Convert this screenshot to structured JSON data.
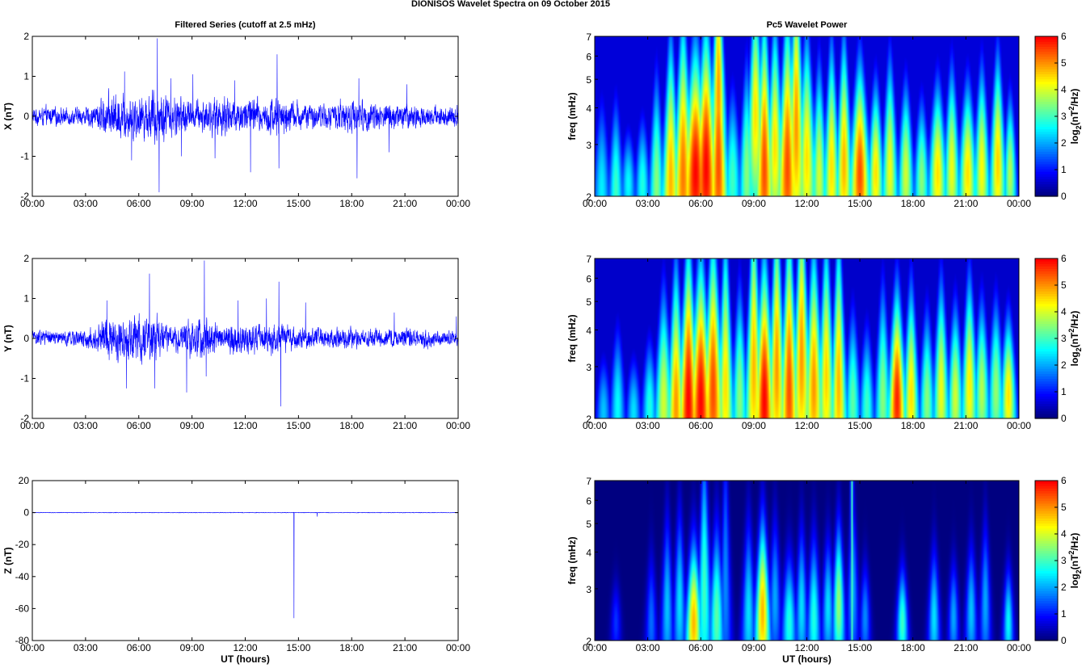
{
  "figure_title": "DIONISOS Wavelet Spectra on 09 October   2015",
  "chart_data": [
    {
      "id": "x-series",
      "type": "line",
      "title": "Filtered Series (cutoff at 2.5 mHz)",
      "ylabel": "X (nT)",
      "xlabel": "",
      "ylim": [
        -2,
        2
      ],
      "yticks": [
        "-2",
        "-1",
        "0",
        "1",
        "2"
      ],
      "xlim_hours": [
        0,
        24
      ],
      "xticks": [
        "00:00",
        "03:00",
        "06:00",
        "09:00",
        "12:00",
        "15:00",
        "18:00",
        "21:00",
        "00:00"
      ],
      "color": "#0000ff",
      "envelope": [
        [
          0.0,
          0.35
        ],
        [
          1.0,
          0.4
        ],
        [
          2.0,
          0.35
        ],
        [
          3.0,
          0.4
        ],
        [
          3.5,
          0.55
        ],
        [
          4.0,
          0.8
        ],
        [
          4.5,
          1.0
        ],
        [
          5.0,
          0.95
        ],
        [
          5.5,
          0.9
        ],
        [
          6.0,
          1.0
        ],
        [
          6.5,
          0.9
        ],
        [
          7.0,
          1.4
        ],
        [
          7.3,
          1.1
        ],
        [
          7.8,
          0.8
        ],
        [
          8.5,
          0.9
        ],
        [
          9.0,
          0.6
        ],
        [
          9.5,
          0.75
        ],
        [
          10.0,
          0.75
        ],
        [
          10.5,
          0.8
        ],
        [
          11.0,
          0.95
        ],
        [
          11.5,
          0.7
        ],
        [
          12.0,
          0.7
        ],
        [
          12.5,
          0.9
        ],
        [
          13.0,
          0.6
        ],
        [
          13.5,
          0.85
        ],
        [
          14.0,
          0.9
        ],
        [
          14.5,
          0.65
        ],
        [
          15.0,
          0.6
        ],
        [
          15.5,
          0.5
        ],
        [
          16.0,
          0.5
        ],
        [
          16.5,
          0.55
        ],
        [
          17.0,
          0.5
        ],
        [
          17.5,
          0.75
        ],
        [
          18.0,
          0.75
        ],
        [
          18.5,
          0.6
        ],
        [
          19.0,
          0.7
        ],
        [
          19.5,
          0.6
        ],
        [
          20.0,
          0.6
        ],
        [
          20.5,
          0.6
        ],
        [
          21.0,
          0.55
        ],
        [
          21.5,
          0.5
        ],
        [
          22.0,
          0.5
        ],
        [
          22.5,
          0.45
        ],
        [
          23.0,
          0.5
        ],
        [
          24.0,
          0.45
        ]
      ],
      "spikes": [
        [
          5.2,
          1.12
        ],
        [
          5.6,
          -1.1
        ],
        [
          7.05,
          1.95
        ],
        [
          7.15,
          -1.9
        ],
        [
          7.8,
          0.95
        ],
        [
          8.4,
          -1.0
        ],
        [
          9.05,
          1.05
        ],
        [
          10.3,
          -1.05
        ],
        [
          11.4,
          0.9
        ],
        [
          12.3,
          -1.4
        ],
        [
          13.8,
          1.55
        ],
        [
          13.9,
          -1.3
        ],
        [
          18.3,
          -1.55
        ],
        [
          18.4,
          0.95
        ],
        [
          20.1,
          -0.9
        ],
        [
          21.1,
          0.8
        ]
      ]
    },
    {
      "id": "y-series",
      "type": "line",
      "title": "",
      "ylabel": "Y (nT)",
      "xlabel": "",
      "ylim": [
        -2,
        2
      ],
      "yticks": [
        "-2",
        "-1",
        "0",
        "1",
        "2"
      ],
      "xlim_hours": [
        0,
        24
      ],
      "xticks": [
        "00:00",
        "03:00",
        "06:00",
        "09:00",
        "12:00",
        "15:00",
        "18:00",
        "21:00",
        "00:00"
      ],
      "color": "#0000ff",
      "envelope": [
        [
          0.0,
          0.35
        ],
        [
          1.0,
          0.35
        ],
        [
          2.0,
          0.3
        ],
        [
          3.0,
          0.4
        ],
        [
          3.5,
          0.6
        ],
        [
          4.0,
          0.8
        ],
        [
          4.5,
          1.0
        ],
        [
          5.0,
          0.95
        ],
        [
          5.5,
          0.85
        ],
        [
          6.0,
          1.0
        ],
        [
          6.5,
          1.05
        ],
        [
          7.0,
          0.95
        ],
        [
          7.5,
          0.6
        ],
        [
          8.0,
          0.55
        ],
        [
          8.5,
          0.65
        ],
        [
          9.0,
          0.75
        ],
        [
          9.5,
          0.95
        ],
        [
          10.0,
          0.75
        ],
        [
          10.5,
          0.55
        ],
        [
          11.0,
          0.6
        ],
        [
          11.5,
          0.7
        ],
        [
          12.0,
          0.65
        ],
        [
          12.5,
          0.65
        ],
        [
          13.0,
          0.6
        ],
        [
          13.5,
          0.65
        ],
        [
          14.0,
          0.75
        ],
        [
          14.5,
          0.55
        ],
        [
          15.0,
          0.5
        ],
        [
          15.5,
          0.45
        ],
        [
          16.0,
          0.45
        ],
        [
          16.5,
          0.4
        ],
        [
          17.0,
          0.45
        ],
        [
          17.5,
          0.5
        ],
        [
          18.0,
          0.45
        ],
        [
          19.0,
          0.4
        ],
        [
          20.0,
          0.4
        ],
        [
          20.5,
          0.45
        ],
        [
          21.0,
          0.45
        ],
        [
          22.0,
          0.4
        ],
        [
          23.0,
          0.35
        ],
        [
          24.0,
          0.35
        ]
      ],
      "spikes": [
        [
          4.2,
          0.95
        ],
        [
          5.3,
          -1.25
        ],
        [
          6.6,
          1.62
        ],
        [
          6.9,
          -1.25
        ],
        [
          8.7,
          -1.35
        ],
        [
          9.7,
          1.95
        ],
        [
          9.8,
          -0.95
        ],
        [
          11.6,
          0.95
        ],
        [
          13.2,
          1.0
        ],
        [
          13.9,
          1.42
        ],
        [
          14.0,
          -1.7
        ],
        [
          15.4,
          0.9
        ],
        [
          20.4,
          0.65
        ],
        [
          23.9,
          0.55
        ]
      ]
    },
    {
      "id": "z-series",
      "type": "line",
      "title": "",
      "ylabel": "Z (nT)",
      "xlabel": "UT (hours)",
      "ylim": [
        -80,
        20
      ],
      "yticks": [
        "-80",
        "-60",
        "-40",
        "-20",
        "0",
        "20"
      ],
      "xlim_hours": [
        0,
        24
      ],
      "xticks": [
        "00:00",
        "03:00",
        "06:00",
        "09:00",
        "12:00",
        "15:00",
        "18:00",
        "21:00",
        "00:00"
      ],
      "color": "#0000ff",
      "envelope": [
        [
          0.0,
          0.3
        ],
        [
          24.0,
          0.3
        ]
      ],
      "spikes": [
        [
          14.75,
          -66
        ],
        [
          16.05,
          -2.5
        ]
      ]
    },
    {
      "id": "x-wavelet",
      "type": "heatmap",
      "title": "Pc5 Wavelet Power",
      "ylabel": "freq (mHz)",
      "xlabel": "",
      "ylim_mhz": [
        2,
        7
      ],
      "yscale": "log",
      "yticks": [
        "2",
        "3",
        "4",
        "5",
        "6",
        "7"
      ],
      "xlim_hours": [
        0,
        24
      ],
      "xticks": [
        "00:00",
        "03:00",
        "06:00",
        "09:00",
        "12:00",
        "15:00",
        "18:00",
        "21:00",
        "00:00"
      ],
      "colorbar": {
        "label_prefix": "log",
        "label_sub": "2",
        "label_mid": "(nT",
        "label_sup": "2",
        "label_suffix": "/Hz)",
        "min": 0,
        "max": 6,
        "ticks": [
          "0",
          "1",
          "2",
          "3",
          "4",
          "5",
          "6"
        ],
        "colormap": "jet"
      },
      "background": 0.6,
      "features": [
        [
          0.4,
          2.1,
          0.35,
          1.6,
          2.5
        ],
        [
          1.2,
          2.1,
          0.3,
          1.6,
          3.0
        ],
        [
          1.9,
          2.2,
          0.3,
          1.3,
          2.6
        ],
        [
          2.7,
          2.2,
          0.3,
          1.4,
          2.8
        ],
        [
          3.5,
          2.2,
          0.3,
          1.8,
          3.5
        ],
        [
          4.3,
          2.3,
          0.35,
          2.2,
          4.8
        ],
        [
          5.0,
          2.4,
          0.4,
          2.4,
          5.2
        ],
        [
          5.7,
          2.4,
          0.5,
          2.0,
          6.0
        ],
        [
          6.3,
          2.5,
          0.45,
          2.2,
          6.0
        ],
        [
          7.0,
          2.6,
          0.35,
          2.6,
          5.5
        ],
        [
          7.0,
          4.5,
          0.25,
          2.4,
          5.0
        ],
        [
          7.8,
          2.3,
          0.35,
          1.6,
          3.0
        ],
        [
          8.6,
          2.4,
          0.3,
          1.8,
          3.5
        ],
        [
          9.1,
          3.8,
          0.3,
          2.0,
          4.5
        ],
        [
          9.6,
          2.5,
          0.35,
          2.4,
          5.5
        ],
        [
          10.2,
          3.0,
          0.3,
          2.0,
          4.5
        ],
        [
          10.9,
          2.5,
          0.4,
          2.4,
          5.5
        ],
        [
          11.4,
          3.5,
          0.3,
          2.6,
          5.0
        ],
        [
          12.0,
          2.7,
          0.35,
          2.0,
          4.5
        ],
        [
          12.7,
          2.4,
          0.3,
          1.8,
          4.0
        ],
        [
          13.4,
          2.5,
          0.3,
          2.0,
          4.5
        ],
        [
          14.1,
          2.6,
          0.3,
          2.0,
          4.8
        ],
        [
          15.0,
          2.4,
          0.4,
          1.8,
          5.5
        ],
        [
          15.9,
          2.4,
          0.3,
          1.6,
          4.5
        ],
        [
          16.7,
          2.5,
          0.3,
          1.8,
          4.2
        ],
        [
          17.6,
          2.4,
          0.3,
          1.6,
          4.0
        ],
        [
          18.5,
          2.3,
          0.3,
          1.5,
          3.5
        ],
        [
          19.4,
          2.4,
          0.35,
          1.6,
          4.5
        ],
        [
          20.2,
          2.5,
          0.3,
          1.7,
          4.2
        ],
        [
          21.1,
          2.4,
          0.35,
          1.6,
          4.5
        ],
        [
          21.9,
          2.5,
          0.3,
          1.7,
          4.3
        ],
        [
          22.8,
          2.6,
          0.3,
          1.8,
          4.6
        ],
        [
          23.5,
          2.4,
          0.25,
          1.5,
          3.8
        ]
      ]
    },
    {
      "id": "y-wavelet",
      "type": "heatmap",
      "title": "",
      "ylabel": "freq (mHz)",
      "xlabel": "",
      "ylim_mhz": [
        2,
        7
      ],
      "yscale": "log",
      "yticks": [
        "2",
        "3",
        "4",
        "5",
        "6",
        "7"
      ],
      "xlim_hours": [
        0,
        24
      ],
      "xticks": [
        "00:00",
        "03:00",
        "06:00",
        "09:00",
        "12:00",
        "15:00",
        "18:00",
        "21:00",
        "00:00"
      ],
      "colorbar": {
        "label_prefix": "log",
        "label_sub": "2",
        "label_mid": "(nT",
        "label_sup": "2",
        "label_suffix": "/Hz)",
        "min": 0,
        "max": 6,
        "ticks": [
          "0",
          "1",
          "2",
          "3",
          "4",
          "5",
          "6"
        ],
        "colormap": "jet"
      },
      "background": 0.5,
      "features": [
        [
          0.5,
          2.1,
          0.3,
          1.3,
          2.2
        ],
        [
          1.3,
          2.2,
          0.3,
          1.5,
          2.6
        ],
        [
          2.2,
          2.1,
          0.3,
          1.3,
          2.4
        ],
        [
          3.1,
          2.2,
          0.3,
          1.4,
          2.8
        ],
        [
          3.9,
          2.3,
          0.35,
          1.8,
          4.0
        ],
        [
          4.6,
          2.2,
          0.35,
          2.2,
          5.0
        ],
        [
          5.3,
          2.3,
          0.4,
          2.4,
          6.0
        ],
        [
          6.0,
          2.3,
          0.45,
          2.2,
          6.0
        ],
        [
          6.7,
          2.5,
          0.4,
          2.4,
          5.5
        ],
        [
          7.4,
          2.6,
          0.3,
          2.4,
          4.5
        ],
        [
          8.2,
          2.4,
          0.3,
          1.8,
          3.5
        ],
        [
          9.0,
          3.0,
          0.3,
          2.6,
          4.8
        ],
        [
          9.6,
          2.3,
          0.4,
          2.2,
          6.0
        ],
        [
          10.3,
          3.0,
          0.3,
          2.5,
          5.0
        ],
        [
          11.0,
          2.5,
          0.35,
          2.6,
          5.5
        ],
        [
          11.7,
          3.3,
          0.3,
          2.6,
          5.0
        ],
        [
          12.4,
          2.6,
          0.35,
          2.2,
          5.0
        ],
        [
          13.1,
          2.8,
          0.3,
          2.2,
          4.6
        ],
        [
          13.8,
          2.6,
          0.3,
          2.4,
          4.8
        ],
        [
          14.6,
          2.3,
          0.3,
          1.6,
          3.2
        ],
        [
          15.4,
          2.2,
          0.3,
          1.5,
          3.0
        ],
        [
          16.3,
          2.4,
          0.3,
          1.8,
          3.5
        ],
        [
          17.1,
          2.3,
          0.35,
          1.8,
          5.8
        ],
        [
          17.9,
          2.4,
          0.3,
          1.8,
          4.5
        ],
        [
          18.8,
          2.3,
          0.3,
          1.6,
          3.5
        ],
        [
          19.6,
          2.5,
          0.3,
          1.8,
          4.2
        ],
        [
          20.4,
          2.4,
          0.3,
          1.6,
          4.0
        ],
        [
          21.2,
          2.6,
          0.3,
          1.8,
          4.4
        ],
        [
          21.9,
          2.5,
          0.3,
          1.6,
          3.8
        ],
        [
          22.7,
          2.5,
          0.3,
          1.6,
          3.6
        ],
        [
          23.4,
          2.4,
          0.3,
          1.5,
          4.5
        ]
      ]
    },
    {
      "id": "z-wavelet",
      "type": "heatmap",
      "title": "",
      "ylabel": "freq (mHz)",
      "xlabel": "UT (hours)",
      "ylim_mhz": [
        2,
        7
      ],
      "yscale": "log",
      "yticks": [
        "2",
        "3",
        "4",
        "5",
        "6",
        "7"
      ],
      "xlim_hours": [
        0,
        24
      ],
      "xticks": [
        "00:00",
        "03:00",
        "06:00",
        "09:00",
        "12:00",
        "15:00",
        "18:00",
        "21:00",
        "00:00"
      ],
      "colorbar": {
        "label_prefix": "log",
        "label_sub": "2",
        "label_mid": "(nT",
        "label_sup": "2",
        "label_suffix": "/Hz)",
        "min": 0,
        "max": 6,
        "ticks": [
          "0",
          "1",
          "2",
          "3",
          "4",
          "5",
          "6"
        ],
        "colormap": "jet"
      },
      "background": 0.0,
      "features": [
        [
          1.2,
          2.3,
          0.2,
          1.2,
          1.2
        ],
        [
          3.2,
          2.3,
          0.22,
          1.4,
          1.6
        ],
        [
          4.1,
          2.6,
          0.22,
          1.6,
          2.2
        ],
        [
          4.8,
          2.7,
          0.22,
          1.6,
          2.4
        ],
        [
          5.6,
          2.3,
          0.3,
          1.5,
          4.8
        ],
        [
          6.2,
          3.0,
          0.25,
          2.2,
          3.0
        ],
        [
          6.9,
          2.4,
          0.28,
          1.6,
          3.2
        ],
        [
          7.4,
          3.2,
          0.2,
          2.2,
          1.8
        ],
        [
          8.7,
          2.5,
          0.25,
          1.6,
          2.4
        ],
        [
          9.5,
          2.5,
          0.28,
          1.6,
          4.8
        ],
        [
          10.2,
          2.8,
          0.22,
          1.5,
          2.0
        ],
        [
          11.0,
          2.3,
          0.28,
          1.4,
          2.8
        ],
        [
          11.7,
          2.6,
          0.22,
          1.5,
          2.4
        ],
        [
          12.4,
          2.4,
          0.25,
          1.5,
          2.8
        ],
        [
          13.2,
          2.6,
          0.22,
          1.4,
          2.4
        ],
        [
          13.8,
          2.7,
          0.22,
          1.5,
          3.6
        ],
        [
          14.6,
          3.0,
          0.2,
          1.6,
          2.0
        ],
        [
          15.3,
          2.4,
          0.2,
          1.3,
          1.8
        ],
        [
          17.4,
          2.3,
          0.22,
          1.3,
          3.0
        ],
        [
          19.2,
          2.4,
          0.22,
          1.4,
          2.4
        ],
        [
          20.3,
          2.4,
          0.2,
          1.3,
          2.0
        ],
        [
          21.3,
          2.5,
          0.22,
          1.4,
          2.2
        ],
        [
          22.1,
          2.7,
          0.2,
          1.5,
          2.0
        ],
        [
          23.4,
          2.3,
          0.2,
          1.3,
          2.6
        ]
      ],
      "lines": [
        [
          14.55,
          7.0,
          2.0,
          3.0
        ]
      ]
    }
  ]
}
